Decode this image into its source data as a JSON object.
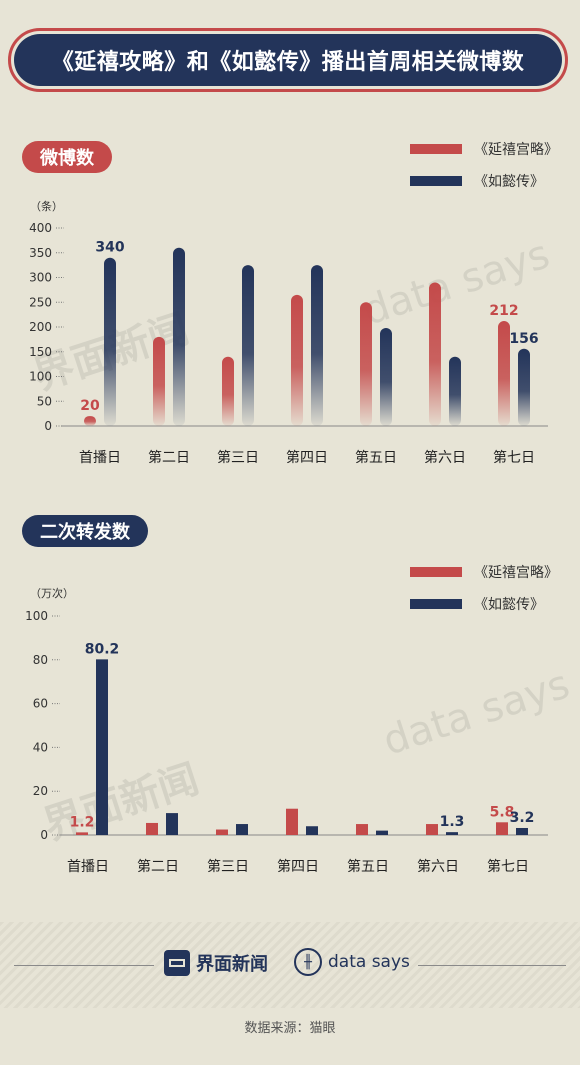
{
  "header": {
    "title": "《延禧攻略》和《如懿传》播出首周相关微博数"
  },
  "legend": {
    "series1": "《延禧宫略》",
    "series2": "《如懿传》"
  },
  "colors": {
    "red": "#c44a4a",
    "navy": "#23345a",
    "background": "#e7e4d6"
  },
  "section1": {
    "label": "微博数",
    "unit": "（条）"
  },
  "section2": {
    "label": "二次转发数",
    "unit": "（万次）"
  },
  "watermark": {
    "brand_cn": "界面新闻",
    "brand_en": "data says"
  },
  "footer": {
    "brand1": "界面新闻",
    "brand2": "data says",
    "source": "数据来源：猫眼"
  },
  "chart_data": [
    {
      "type": "bar",
      "title": "微博数",
      "ylabel": "（条）",
      "categories": [
        "首播日",
        "第二日",
        "第三日",
        "第四日",
        "第五日",
        "第六日",
        "第七日"
      ],
      "yticks": [
        0,
        50,
        100,
        150,
        200,
        250,
        300,
        350,
        400
      ],
      "ylim": [
        0,
        400
      ],
      "series": [
        {
          "name": "《延禧宫略》",
          "color": "#c44a4a",
          "values": [
            20,
            180,
            140,
            265,
            250,
            290,
            212
          ]
        },
        {
          "name": "《如懿传》",
          "color": "#23345a",
          "values": [
            340,
            360,
            325,
            325,
            198,
            140,
            156
          ]
        }
      ],
      "data_labels": [
        {
          "series": 0,
          "index": 0,
          "text": "20"
        },
        {
          "series": 1,
          "index": 0,
          "text": "340"
        },
        {
          "series": 0,
          "index": 6,
          "text": "212"
        },
        {
          "series": 1,
          "index": 6,
          "text": "156"
        }
      ]
    },
    {
      "type": "bar",
      "title": "二次转发数",
      "ylabel": "（万次）",
      "categories": [
        "首播日",
        "第二日",
        "第三日",
        "第四日",
        "第五日",
        "第六日",
        "第七日"
      ],
      "yticks": [
        0,
        20,
        40,
        60,
        80,
        100
      ],
      "ylim": [
        0,
        100
      ],
      "series": [
        {
          "name": "《延禧宫略》",
          "color": "#c44a4a",
          "values": [
            1.2,
            5.5,
            2.5,
            12,
            5.0,
            5.0,
            5.8
          ]
        },
        {
          "name": "《如懿传》",
          "color": "#23345a",
          "values": [
            80.2,
            10,
            5.0,
            4.0,
            2.0,
            1.3,
            3.2
          ]
        }
      ],
      "data_labels": [
        {
          "series": 0,
          "index": 0,
          "text": "1.2"
        },
        {
          "series": 1,
          "index": 0,
          "text": "80.2"
        },
        {
          "series": 1,
          "index": 5,
          "text": "1.3"
        },
        {
          "series": 0,
          "index": 6,
          "text": "5.8"
        },
        {
          "series": 1,
          "index": 6,
          "text": "3.2"
        }
      ]
    }
  ]
}
